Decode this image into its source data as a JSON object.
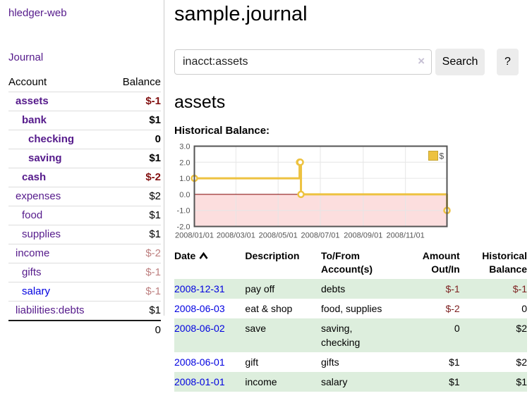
{
  "sidebar": {
    "brand": "hledger-web",
    "journal_link": "Journal",
    "accounts_header": {
      "account": "Account",
      "balance": "Balance"
    },
    "accounts": [
      {
        "name": "assets",
        "indent": 1,
        "bold": true,
        "link_color": "purple",
        "balance": "$-1",
        "balance_style": "neg-dark"
      },
      {
        "name": "bank",
        "indent": 2,
        "bold": true,
        "link_color": "purple",
        "balance": "$1",
        "balance_style": "pos"
      },
      {
        "name": "checking",
        "indent": 3,
        "bold": true,
        "link_color": "purple",
        "balance": "0",
        "balance_style": "pos"
      },
      {
        "name": "saving",
        "indent": 3,
        "bold": true,
        "link_color": "purple",
        "balance": "$1",
        "balance_style": "pos"
      },
      {
        "name": "cash",
        "indent": 2,
        "bold": true,
        "link_color": "purple",
        "balance": "$-2",
        "balance_style": "neg-dark"
      },
      {
        "name": "expenses",
        "indent": 1,
        "bold": false,
        "link_color": "purple",
        "balance": "$2",
        "balance_style": "pos"
      },
      {
        "name": "food",
        "indent": 2,
        "bold": false,
        "link_color": "purple",
        "balance": "$1",
        "balance_style": "pos"
      },
      {
        "name": "supplies",
        "indent": 2,
        "bold": false,
        "link_color": "purple",
        "balance": "$1",
        "balance_style": "pos"
      },
      {
        "name": "income",
        "indent": 1,
        "bold": false,
        "link_color": "purple",
        "balance": "$-2",
        "balance_style": "neg-rose"
      },
      {
        "name": "gifts",
        "indent": 2,
        "bold": false,
        "link_color": "purple",
        "balance": "$-1",
        "balance_style": "neg-rose"
      },
      {
        "name": "salary",
        "indent": 2,
        "bold": false,
        "link_color": "blue",
        "balance": "$-1",
        "balance_style": "neg-rose"
      },
      {
        "name": "liabilities:debts",
        "indent": 1,
        "bold": false,
        "link_color": "purple",
        "balance": "$1",
        "balance_style": "pos"
      }
    ],
    "total": "0"
  },
  "main": {
    "title": "sample.journal",
    "search": {
      "value": "inacct:assets",
      "clear_glyph": "×",
      "button_label": "Search",
      "help_label": "?"
    },
    "account_title": "assets",
    "chart_label": "Historical Balance:"
  },
  "chart_data": {
    "type": "line",
    "title": "Historical Balance:",
    "step": true,
    "series": [
      {
        "name": "$",
        "color": "#edc240",
        "points": [
          {
            "day": 0,
            "date": "2008-01-01",
            "value": 1
          },
          {
            "day": 152,
            "date": "2008-06-01",
            "value": 2
          },
          {
            "day": 153,
            "date": "2008-06-02",
            "value": 2
          },
          {
            "day": 154,
            "date": "2008-06-03",
            "value": 0
          },
          {
            "day": 365,
            "date": "2008-12-31",
            "value": -1
          }
        ]
      }
    ],
    "x_ticks": [
      {
        "day": 0,
        "label": "2008/01/01"
      },
      {
        "day": 60,
        "label": "2008/03/01"
      },
      {
        "day": 121,
        "label": "2008/05/01"
      },
      {
        "day": 182,
        "label": "2008/07/01"
      },
      {
        "day": 244,
        "label": "2008/09/01"
      },
      {
        "day": 305,
        "label": "2008/11/01"
      }
    ],
    "y_ticks": [
      3.0,
      2.0,
      1.0,
      0.0,
      -1.0,
      -2.0
    ],
    "ylim": [
      -2,
      3
    ],
    "xlim_days": [
      0,
      365
    ],
    "legend": {
      "label": "$",
      "position": "top-right"
    },
    "colors": {
      "series": "#edc240",
      "marker_fill": "#ffffff",
      "negative_region": "#fcdede",
      "zero_line": "#800000",
      "grid": "#e6e6e6",
      "border": "#545454",
      "tick_text": "#545454"
    }
  },
  "register": {
    "columns": [
      {
        "label": "Date",
        "align": "left",
        "sorted": true
      },
      {
        "label": "Description",
        "align": "left"
      },
      {
        "label": "To/From Account(s)",
        "align": "left"
      },
      {
        "label": "Amount Out/In",
        "align": "right"
      },
      {
        "label": "Historical Balance",
        "align": "right"
      }
    ],
    "rows": [
      {
        "date": "2008-12-31",
        "description": "pay off",
        "accounts": "debts",
        "amount": "$-1",
        "amount_neg": true,
        "balance": "$-1",
        "balance_neg": true
      },
      {
        "date": "2008-06-03",
        "description": "eat & shop",
        "accounts": "food, supplies",
        "amount": "$-2",
        "amount_neg": true,
        "balance": "0",
        "balance_neg": false
      },
      {
        "date": "2008-06-02",
        "description": "save",
        "accounts": "saving, checking",
        "amount": "0",
        "amount_neg": false,
        "balance": "$2",
        "balance_neg": false
      },
      {
        "date": "2008-06-01",
        "description": "gift",
        "accounts": "gifts",
        "amount": "$1",
        "amount_neg": false,
        "balance": "$2",
        "balance_neg": false
      },
      {
        "date": "2008-01-01",
        "description": "income",
        "accounts": "salary",
        "amount": "$1",
        "amount_neg": false,
        "balance": "$1",
        "balance_neg": false
      }
    ]
  }
}
